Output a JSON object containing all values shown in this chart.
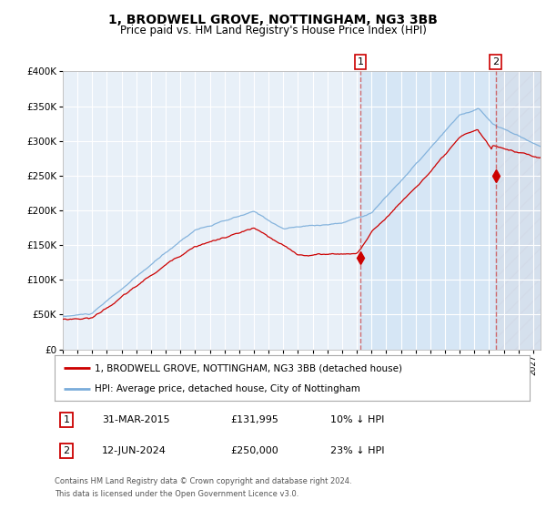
{
  "title": "1, BRODWELL GROVE, NOTTINGHAM, NG3 3BB",
  "subtitle": "Price paid vs. HM Land Registry's House Price Index (HPI)",
  "legend_line1": "1, BRODWELL GROVE, NOTTINGHAM, NG3 3BB (detached house)",
  "legend_line2": "HPI: Average price, detached house, City of Nottingham",
  "annotation1_label": "1",
  "annotation1_date": "31-MAR-2015",
  "annotation1_price": "£131,995",
  "annotation1_hpi": "10% ↓ HPI",
  "annotation2_label": "2",
  "annotation2_date": "12-JUN-2024",
  "annotation2_price": "£250,000",
  "annotation2_hpi": "23% ↓ HPI",
  "footnote1": "Contains HM Land Registry data © Crown copyright and database right 2024.",
  "footnote2": "This data is licensed under the Open Government Licence v3.0.",
  "hpi_color": "#7aadda",
  "price_color": "#cc0000",
  "bg_main": "#e8f0f8",
  "bg_shade": "#d5e5f5",
  "bg_hatch": "#d0d0d8",
  "grid_color": "#ffffff",
  "ylim": [
    0,
    400000
  ],
  "yticks": [
    0,
    50000,
    100000,
    150000,
    200000,
    250000,
    300000,
    350000,
    400000
  ],
  "sale1_year": 2015.25,
  "sale1_value": 131995,
  "sale2_year": 2024.45,
  "sale2_value": 250000,
  "xstart": 1995,
  "xend": 2027.5
}
